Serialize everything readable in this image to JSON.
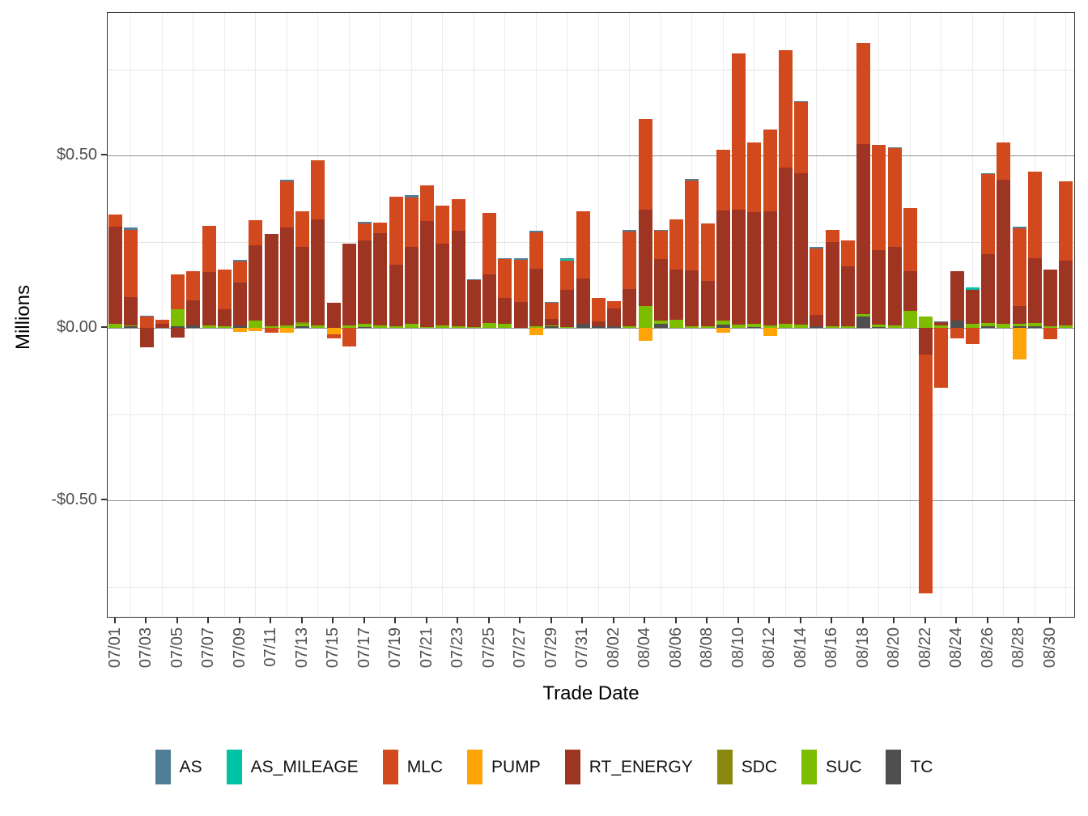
{
  "figure": {
    "y_axis_title": "Millions",
    "x_axis_title": "Trade Date"
  },
  "legend": {
    "items": [
      {
        "label": "AS",
        "color": "#4f7e96"
      },
      {
        "label": "AS_MILEAGE",
        "color": "#00c3a6"
      },
      {
        "label": "MLC",
        "color": "#d2491d"
      },
      {
        "label": "PUMP",
        "color": "#ffa406"
      },
      {
        "label": "RT_ENERGY",
        "color": "#9e3523"
      },
      {
        "label": "SDC",
        "color": "#8a890f"
      },
      {
        "label": "SUC",
        "color": "#7cbd00"
      },
      {
        "label": "TC",
        "color": "#4f4f4f"
      }
    ]
  },
  "chart_data": {
    "type": "bar",
    "stacked": true,
    "title": "",
    "xlabel": "Trade Date",
    "ylabel": "Millions",
    "ylim": [
      -0.843,
      0.913
    ],
    "grid": "major-and-minor",
    "legend_position": "bottom",
    "y_ticks": [
      {
        "label": "$0.50",
        "value": 0.5
      },
      {
        "label": "$0.00",
        "value": 0.0
      },
      {
        "label": "-$0.50",
        "value": -0.5
      }
    ],
    "y_minor_gridlines": [
      0.75,
      0.25,
      -0.25,
      -0.75
    ],
    "x_tick_labels": [
      "07/01",
      "07/03",
      "07/05",
      "07/07",
      "07/09",
      "07/11",
      "07/13",
      "07/15",
      "07/17",
      "07/19",
      "07/21",
      "07/23",
      "07/25",
      "07/27",
      "07/29",
      "07/31",
      "08/02",
      "08/04",
      "08/06",
      "08/08",
      "08/10",
      "08/12",
      "08/14",
      "08/16",
      "08/18",
      "08/20",
      "08/22",
      "08/24",
      "08/26",
      "08/28",
      "08/30"
    ],
    "series": [
      {
        "name": "TC",
        "color": "#4f4f4f"
      },
      {
        "name": "SUC",
        "color": "#7cbd00"
      },
      {
        "name": "SDC",
        "color": "#8a890f"
      },
      {
        "name": "RT_ENERGY",
        "color": "#9e3523"
      },
      {
        "name": "PUMP",
        "color": "#ffa406"
      },
      {
        "name": "MLC",
        "color": "#d2491d"
      },
      {
        "name": "AS_MILEAGE",
        "color": "#00c3a6"
      },
      {
        "name": "AS",
        "color": "#4f7e96"
      }
    ],
    "days": [
      {
        "date": "07/01",
        "SUC": 0.012,
        "RT_ENERGY": 0.281,
        "MLC": 0.035
      },
      {
        "date": "07/02",
        "TC": 0.005,
        "SUC": 0.003,
        "RT_ENERGY": 0.082,
        "MLC": 0.195,
        "AS": 0.005
      },
      {
        "date": "07/03",
        "MLC": 0.033,
        "AS": 0.002,
        "RT_ENERGY": -0.056
      },
      {
        "date": "07/04",
        "RT_ENERGY": 0.011,
        "MLC": 0.012
      },
      {
        "date": "07/05",
        "TC": 0.004,
        "SUC": 0.05,
        "MLC": 0.1,
        "RT_ENERGY": -0.028
      },
      {
        "date": "07/06",
        "TC": 0.008,
        "RT_ENERGY": 0.072,
        "MLC": 0.085
      },
      {
        "date": "07/07",
        "SUC": 0.006,
        "RT_ENERGY": 0.155,
        "MLC": 0.135
      },
      {
        "date": "07/08",
        "SUC": 0.004,
        "RT_ENERGY": 0.05,
        "MLC": 0.114
      },
      {
        "date": "07/09",
        "TC": 0.006,
        "RT_ENERGY": 0.125,
        "MLC": 0.062,
        "AS": 0.005,
        "PUMP": -0.012
      },
      {
        "date": "07/10",
        "SUC": 0.021,
        "RT_ENERGY": 0.219,
        "MLC": 0.073,
        "PUMP": -0.01
      },
      {
        "date": "07/11",
        "SUC": 0.005,
        "RT_ENERGY": 0.268,
        "MLC": -0.015
      },
      {
        "date": "07/12",
        "SUC": 0.008,
        "RT_ENERGY": 0.283,
        "MLC": 0.133,
        "AS": 0.006,
        "PUMP": -0.014
      },
      {
        "date": "07/13",
        "TC": 0.004,
        "SUC": 0.008,
        "SDC": 0.004,
        "RT_ENERGY": 0.219,
        "MLC": 0.104
      },
      {
        "date": "07/14",
        "SUC": 0.008,
        "RT_ENERGY": 0.306,
        "MLC": 0.172
      },
      {
        "date": "07/15",
        "RT_ENERGY": 0.072,
        "PUMP": -0.019,
        "MLC": -0.011
      },
      {
        "date": "07/16",
        "SUC": 0.008,
        "RT_ENERGY": 0.236,
        "MLC": -0.054
      },
      {
        "date": "07/17",
        "TC": 0.003,
        "SUC": 0.008,
        "RT_ENERGY": 0.243,
        "MLC": 0.048,
        "AS": 0.005
      },
      {
        "date": "07/18",
        "SUC": 0.008,
        "RT_ENERGY": 0.267,
        "MLC": 0.03
      },
      {
        "date": "07/19",
        "SUC": 0.005,
        "RT_ENERGY": 0.177,
        "MLC": 0.199
      },
      {
        "date": "07/20",
        "SUC": 0.012,
        "RT_ENERGY": 0.223,
        "MLC": 0.144,
        "AS": 0.005
      },
      {
        "date": "07/21",
        "SUC": 0.003,
        "RT_ENERGY": 0.307,
        "MLC": 0.102
      },
      {
        "date": "07/22",
        "SUC": 0.006,
        "RT_ENERGY": 0.238,
        "MLC": 0.11
      },
      {
        "date": "07/23",
        "SUC": 0.004,
        "RT_ENERGY": 0.277,
        "MLC": 0.093
      },
      {
        "date": "07/24",
        "SUC": 0.002,
        "RT_ENERGY": 0.136,
        "AS": 0.004
      },
      {
        "date": "07/25",
        "SUC": 0.015,
        "RT_ENERGY": 0.141,
        "MLC": 0.177
      },
      {
        "date": "07/26",
        "SUC": 0.012,
        "RT_ENERGY": 0.076,
        "MLC": 0.111,
        "AS": 0.004
      },
      {
        "date": "07/27",
        "RT_ENERGY": 0.075,
        "MLC": 0.123,
        "AS": 0.004
      },
      {
        "date": "07/28",
        "SUC": 0.004,
        "RT_ENERGY": 0.168,
        "MLC": 0.104,
        "AS": 0.005,
        "PUMP": -0.022
      },
      {
        "date": "07/29",
        "TC": 0.004,
        "SUC": 0.004,
        "RT_ENERGY": 0.018,
        "MLC": 0.046,
        "AS": 0.003
      },
      {
        "date": "07/30",
        "SUC": 0.003,
        "RT_ENERGY": 0.107,
        "MLC": 0.085,
        "AS_MILEAGE": 0.004,
        "AS": 0.003
      },
      {
        "date": "07/31",
        "TC": 0.012,
        "RT_ENERGY": 0.131,
        "MLC": 0.195
      },
      {
        "date": "08/01",
        "TC": 0.004,
        "RT_ENERGY": 0.014,
        "MLC": 0.068
      },
      {
        "date": "08/02",
        "TC": 0.005,
        "RT_ENERGY": 0.051,
        "MLC": 0.021
      },
      {
        "date": "08/03",
        "SUC": 0.005,
        "RT_ENERGY": 0.107,
        "MLC": 0.167,
        "AS": 0.005
      },
      {
        "date": "08/04",
        "SUC": 0.063,
        "RT_ENERGY": 0.279,
        "MLC": 0.263,
        "PUMP": -0.038
      },
      {
        "date": "08/05",
        "TC": 0.012,
        "SUC": 0.008,
        "RT_ENERGY": 0.18,
        "MLC": 0.081,
        "AS": 0.004
      },
      {
        "date": "08/06",
        "SUC": 0.024,
        "RT_ENERGY": 0.144,
        "MLC": 0.146
      },
      {
        "date": "08/07",
        "SUC": 0.005,
        "RT_ENERGY": 0.161,
        "MLC": 0.261,
        "AS": 0.005
      },
      {
        "date": "08/08",
        "SUC": 0.004,
        "RT_ENERGY": 0.133,
        "MLC": 0.165
      },
      {
        "date": "08/09",
        "TC": 0.01,
        "SUC": 0.012,
        "RT_ENERGY": 0.319,
        "MLC": 0.176,
        "PUMP": -0.013
      },
      {
        "date": "08/10",
        "SUC": 0.01,
        "RT_ENERGY": 0.333,
        "MLC": 0.452
      },
      {
        "date": "08/11",
        "TC": 0.003,
        "SUC": 0.008,
        "RT_ENERGY": 0.324,
        "MLC": 0.202
      },
      {
        "date": "08/12",
        "SUC": 0.006,
        "RT_ENERGY": 0.332,
        "MLC": 0.237,
        "PUMP": -0.024
      },
      {
        "date": "08/13",
        "SUC": 0.012,
        "RT_ENERGY": 0.453,
        "MLC": 0.34
      },
      {
        "date": "08/14",
        "SUC": 0.01,
        "RT_ENERGY": 0.439,
        "MLC": 0.205,
        "AS": 0.004
      },
      {
        "date": "08/15",
        "TC": 0.004,
        "RT_ENERGY": 0.033,
        "MLC": 0.194,
        "AS": 0.004
      },
      {
        "date": "08/16",
        "SUC": 0.005,
        "RT_ENERGY": 0.244,
        "MLC": 0.035
      },
      {
        "date": "08/17",
        "SUC": 0.005,
        "RT_ENERGY": 0.174,
        "MLC": 0.075
      },
      {
        "date": "08/18",
        "TC": 0.034,
        "SUC": 0.006,
        "RT_ENERGY": 0.493,
        "MLC": 0.293
      },
      {
        "date": "08/19",
        "TC": 0.003,
        "SUC": 0.006,
        "RT_ENERGY": 0.216,
        "MLC": 0.305
      },
      {
        "date": "08/20",
        "SUC": 0.008,
        "RT_ENERGY": 0.227,
        "MLC": 0.285,
        "AS": 0.004
      },
      {
        "date": "08/21",
        "SUC": 0.049,
        "RT_ENERGY": 0.116,
        "MLC": 0.182
      },
      {
        "date": "08/22",
        "SUC": 0.032,
        "RT_ENERGY": -0.077,
        "MLC": -0.693
      },
      {
        "date": "08/23",
        "SUC": 0.008,
        "RT_ENERGY": 0.008,
        "AS": 0.003,
        "MLC": -0.174
      },
      {
        "date": "08/24",
        "TC": 0.02,
        "RT_ENERGY": 0.145,
        "MLC": -0.031
      },
      {
        "date": "08/25",
        "SUC": 0.011,
        "RT_ENERGY": 0.099,
        "AS_MILEAGE": 0.007,
        "MLC": -0.048
      },
      {
        "date": "08/26",
        "TC": 0.005,
        "SUC": 0.01,
        "RT_ENERGY": 0.199,
        "MLC": 0.231,
        "AS": 0.004
      },
      {
        "date": "08/27",
        "SUC": 0.012,
        "RT_ENERGY": 0.418,
        "MLC": 0.107
      },
      {
        "date": "08/28",
        "TC": 0.004,
        "SUC": 0.008,
        "RT_ENERGY": 0.051,
        "MLC": 0.226,
        "AS": 0.004,
        "PUMP": -0.091
      },
      {
        "date": "08/29",
        "TC": 0.005,
        "SUC": 0.008,
        "RT_ENERGY": 0.19,
        "MLC": 0.251
      },
      {
        "date": "08/30",
        "SUC": 0.004,
        "RT_ENERGY": 0.164,
        "MLC": -0.033
      },
      {
        "date": "08/31",
        "SUC": 0.006,
        "RT_ENERGY": 0.188,
        "MLC": 0.23
      }
    ]
  }
}
